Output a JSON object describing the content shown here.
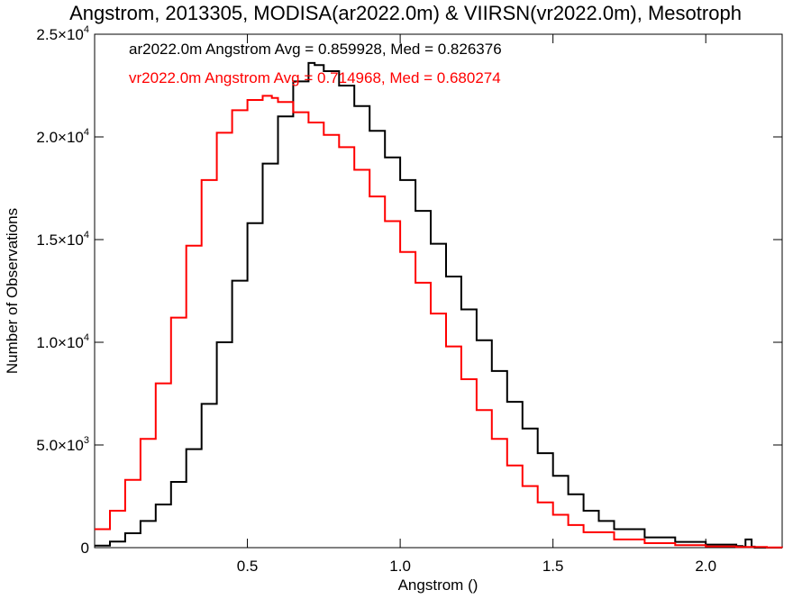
{
  "chart_data": {
    "type": "line",
    "title": "Angstrom, 2013305, MODISA(ar2022.0m) & VIIRSN(vr2022.0m), Mesotroph",
    "xlabel": "Angstrom ()",
    "ylabel": "Number of Observations",
    "xlim": [
      0.0,
      2.25
    ],
    "ylim": [
      0,
      25000
    ],
    "x_ticks": [
      0.5,
      1.0,
      1.5,
      2.0
    ],
    "x_tick_labels": [
      "0.5",
      "1.0",
      "1.5",
      "2.0"
    ],
    "y_ticks": [
      0,
      5000,
      10000,
      15000,
      20000,
      25000
    ],
    "y_tick_labels": [
      {
        "base": "0",
        "exp": ""
      },
      {
        "base": "5.0×10",
        "exp": "3"
      },
      {
        "base": "1.0×10",
        "exp": "4"
      },
      {
        "base": "1.5×10",
        "exp": "4"
      },
      {
        "base": "2.0×10",
        "exp": "4"
      },
      {
        "base": "2.5×10",
        "exp": "4"
      }
    ],
    "grid": false,
    "legend_position": "top-left",
    "series": [
      {
        "name": "ar2022.0m Angstrom Avg = 0.859928, Med = 0.826376",
        "color": "#000000",
        "style": "step",
        "x": [
          0.0,
          0.05,
          0.1,
          0.15,
          0.2,
          0.25,
          0.3,
          0.35,
          0.4,
          0.45,
          0.5,
          0.55,
          0.6,
          0.65,
          0.7,
          0.72,
          0.75,
          0.8,
          0.85,
          0.9,
          0.95,
          1.0,
          1.05,
          1.1,
          1.15,
          1.2,
          1.25,
          1.3,
          1.35,
          1.4,
          1.45,
          1.5,
          1.55,
          1.6,
          1.65,
          1.7,
          1.8,
          1.9,
          2.0,
          2.1,
          2.12,
          2.13,
          2.14,
          2.15,
          2.16
        ],
        "y": [
          100,
          300,
          700,
          1300,
          2100,
          3200,
          4800,
          7000,
          10000,
          13000,
          15800,
          18700,
          21000,
          22700,
          23600,
          23500,
          23200,
          22500,
          21500,
          20300,
          19000,
          17900,
          16400,
          14800,
          13200,
          11600,
          10100,
          8600,
          7100,
          5800,
          4600,
          3500,
          2600,
          1800,
          1300,
          900,
          500,
          280,
          150,
          80,
          50,
          400,
          400,
          50,
          0
        ]
      },
      {
        "name": "vr2022.0m Angstrom Avg = 0.714968, Med = 0.680274",
        "color": "#ff0000",
        "style": "step",
        "x": [
          0.0,
          0.05,
          0.1,
          0.15,
          0.2,
          0.25,
          0.3,
          0.35,
          0.4,
          0.45,
          0.5,
          0.55,
          0.58,
          0.6,
          0.65,
          0.7,
          0.75,
          0.8,
          0.85,
          0.9,
          0.95,
          1.0,
          1.05,
          1.1,
          1.15,
          1.2,
          1.25,
          1.3,
          1.35,
          1.4,
          1.45,
          1.5,
          1.55,
          1.6,
          1.7,
          1.8,
          1.9,
          2.0,
          2.1,
          2.2,
          2.25
        ],
        "y": [
          900,
          1800,
          3300,
          5300,
          8000,
          11200,
          14700,
          17900,
          20200,
          21300,
          21800,
          22000,
          21900,
          21700,
          21200,
          20700,
          20100,
          19500,
          18400,
          17100,
          15900,
          14400,
          12900,
          11400,
          9800,
          8200,
          6700,
          5300,
          4000,
          3000,
          2200,
          1600,
          1100,
          750,
          400,
          220,
          120,
          60,
          30,
          15,
          10
        ]
      }
    ]
  }
}
